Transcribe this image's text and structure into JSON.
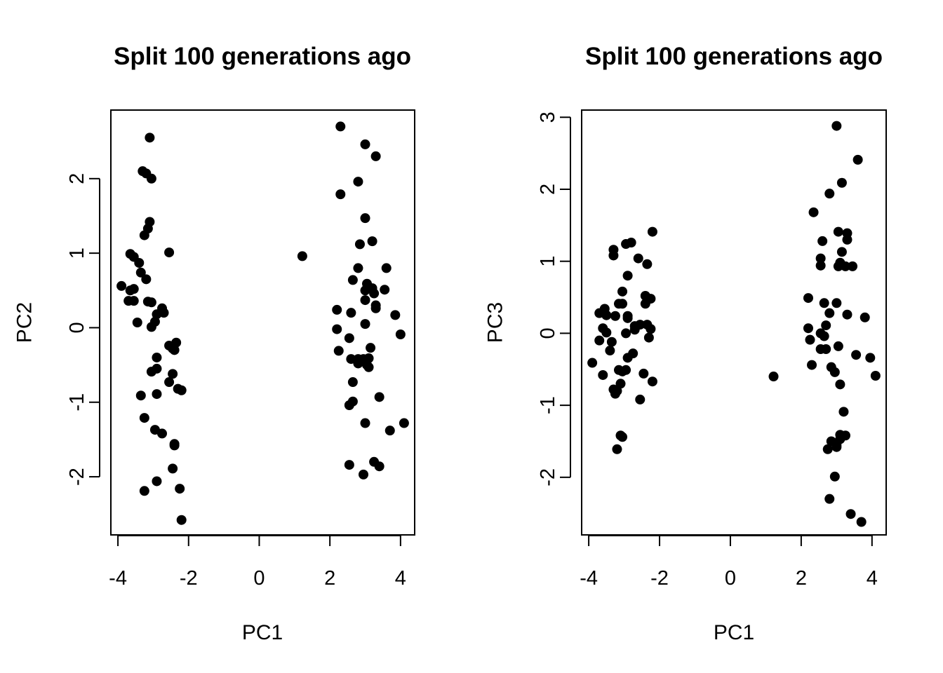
{
  "chart_data": [
    {
      "type": "scatter",
      "title": "Split 100 generations ago",
      "xlabel": "PC1",
      "ylabel": "PC2",
      "xlim": [
        -4.2,
        4.4
      ],
      "ylim": [
        -2.78,
        2.92
      ],
      "xticks": [
        -4,
        -2,
        0,
        2,
        4
      ],
      "yticks": [
        -2,
        -1,
        0,
        1,
        2
      ],
      "points": [
        [
          -3.1,
          2.55
        ],
        [
          -3.3,
          2.1
        ],
        [
          -3.2,
          2.07
        ],
        [
          -3.05,
          2.0
        ],
        [
          -3.1,
          1.42
        ],
        [
          -3.15,
          1.33
        ],
        [
          -3.25,
          1.24
        ],
        [
          -3.65,
          0.99
        ],
        [
          -3.55,
          0.95
        ],
        [
          -2.55,
          1.01
        ],
        [
          -3.4,
          0.87
        ],
        [
          -3.35,
          0.74
        ],
        [
          -3.2,
          0.65
        ],
        [
          -3.9,
          0.56
        ],
        [
          -3.55,
          0.52
        ],
        [
          -3.65,
          0.5
        ],
        [
          -3.7,
          0.36
        ],
        [
          -3.55,
          0.36
        ],
        [
          -3.15,
          0.35
        ],
        [
          -3.05,
          0.34
        ],
        [
          -2.75,
          0.26
        ],
        [
          -2.7,
          0.2
        ],
        [
          -2.9,
          0.18
        ],
        [
          -2.95,
          0.08
        ],
        [
          -3.45,
          0.07
        ],
        [
          -3.05,
          0.01
        ],
        [
          -2.55,
          -0.24
        ],
        [
          -2.35,
          -0.2
        ],
        [
          -2.45,
          -0.28
        ],
        [
          -2.4,
          -0.3
        ],
        [
          -2.9,
          -0.4
        ],
        [
          -3.05,
          -0.59
        ],
        [
          -2.9,
          -0.55
        ],
        [
          -2.45,
          -0.62
        ],
        [
          -2.55,
          -0.73
        ],
        [
          -2.3,
          -0.82
        ],
        [
          -2.2,
          -0.84
        ],
        [
          -3.35,
          -0.91
        ],
        [
          -2.9,
          -0.89
        ],
        [
          -3.25,
          -1.21
        ],
        [
          -2.95,
          -1.37
        ],
        [
          -2.75,
          -1.42
        ],
        [
          -2.4,
          -1.56
        ],
        [
          -2.4,
          -1.58
        ],
        [
          -2.45,
          -1.89
        ],
        [
          -2.9,
          -2.06
        ],
        [
          -3.25,
          -2.19
        ],
        [
          -2.25,
          -2.16
        ],
        [
          -2.2,
          -2.58
        ],
        [
          1.22,
          0.96
        ],
        [
          2.3,
          2.7
        ],
        [
          3.0,
          2.46
        ],
        [
          3.3,
          2.3
        ],
        [
          2.3,
          1.79
        ],
        [
          2.8,
          1.96
        ],
        [
          3.0,
          1.47
        ],
        [
          3.2,
          1.16
        ],
        [
          2.85,
          1.12
        ],
        [
          3.6,
          0.8
        ],
        [
          2.8,
          0.8
        ],
        [
          2.65,
          0.64
        ],
        [
          3.05,
          0.59
        ],
        [
          3.1,
          0.54
        ],
        [
          3.0,
          0.5
        ],
        [
          3.55,
          0.51
        ],
        [
          3.2,
          0.53
        ],
        [
          3.25,
          0.46
        ],
        [
          3.0,
          0.37
        ],
        [
          3.3,
          0.26
        ],
        [
          3.3,
          0.3
        ],
        [
          2.2,
          0.24
        ],
        [
          2.6,
          0.2
        ],
        [
          3.85,
          0.17
        ],
        [
          3.0,
          0.05
        ],
        [
          2.2,
          -0.02
        ],
        [
          4.0,
          -0.09
        ],
        [
          2.55,
          -0.14
        ],
        [
          3.15,
          -0.27
        ],
        [
          2.25,
          -0.31
        ],
        [
          2.6,
          -0.42
        ],
        [
          2.8,
          -0.42
        ],
        [
          2.95,
          -0.42
        ],
        [
          3.1,
          -0.41
        ],
        [
          2.8,
          -0.48
        ],
        [
          3.05,
          -0.5
        ],
        [
          3.1,
          -0.53
        ],
        [
          2.65,
          -0.73
        ],
        [
          3.4,
          -0.93
        ],
        [
          2.65,
          -0.99
        ],
        [
          2.55,
          -1.04
        ],
        [
          3.0,
          -1.28
        ],
        [
          4.1,
          -1.28
        ],
        [
          3.7,
          -1.38
        ],
        [
          2.55,
          -1.84
        ],
        [
          3.25,
          -1.8
        ],
        [
          3.4,
          -1.86
        ],
        [
          2.95,
          -1.97
        ]
      ]
    },
    {
      "type": "scatter",
      "title": "Split 100 generations ago",
      "xlabel": "PC1",
      "ylabel": "PC3",
      "xlim": [
        -4.2,
        4.4
      ],
      "ylim": [
        -2.8,
        3.1
      ],
      "xticks": [
        -4,
        -2,
        0,
        2,
        4
      ],
      "yticks": [
        -2,
        -1,
        0,
        1,
        2,
        3
      ],
      "points": [
        [
          -2.2,
          1.41
        ],
        [
          -3.3,
          1.16
        ],
        [
          -2.95,
          1.24
        ],
        [
          -2.8,
          1.26
        ],
        [
          -3.3,
          1.08
        ],
        [
          -2.6,
          1.04
        ],
        [
          -2.35,
          0.96
        ],
        [
          -2.9,
          0.8
        ],
        [
          -3.05,
          0.58
        ],
        [
          -2.4,
          0.52
        ],
        [
          -2.25,
          0.48
        ],
        [
          -3.15,
          0.41
        ],
        [
          -3.05,
          0.41
        ],
        [
          -2.4,
          0.41
        ],
        [
          -3.55,
          0.34
        ],
        [
          -3.7,
          0.28
        ],
        [
          -3.5,
          0.25
        ],
        [
          -3.25,
          0.24
        ],
        [
          -2.9,
          0.24
        ],
        [
          -2.9,
          0.21
        ],
        [
          -2.55,
          0.12
        ],
        [
          -2.35,
          0.12
        ],
        [
          -2.7,
          0.1
        ],
        [
          -3.6,
          0.07
        ],
        [
          -2.25,
          0.06
        ],
        [
          -2.7,
          0.05
        ],
        [
          -3.5,
          0.01
        ],
        [
          -2.95,
          0.0
        ],
        [
          -2.3,
          -0.06
        ],
        [
          -3.7,
          -0.1
        ],
        [
          -3.35,
          -0.12
        ],
        [
          -3.4,
          -0.24
        ],
        [
          -2.75,
          -0.28
        ],
        [
          -2.9,
          -0.34
        ],
        [
          -3.9,
          -0.41
        ],
        [
          -3.15,
          -0.51
        ],
        [
          -2.95,
          -0.51
        ],
        [
          -3.05,
          -0.53
        ],
        [
          -2.45,
          -0.56
        ],
        [
          -3.6,
          -0.58
        ],
        [
          -2.2,
          -0.67
        ],
        [
          -3.1,
          -0.7
        ],
        [
          -3.3,
          -0.78
        ],
        [
          -3.2,
          -0.8
        ],
        [
          -3.25,
          -0.84
        ],
        [
          -2.55,
          -0.92
        ],
        [
          -3.1,
          -1.42
        ],
        [
          -3.05,
          -1.44
        ],
        [
          -3.2,
          -1.61
        ],
        [
          1.22,
          -0.6
        ],
        [
          3.0,
          2.88
        ],
        [
          3.6,
          2.41
        ],
        [
          3.15,
          2.09
        ],
        [
          2.8,
          1.94
        ],
        [
          2.35,
          1.68
        ],
        [
          3.05,
          1.41
        ],
        [
          3.3,
          1.39
        ],
        [
          3.3,
          1.3
        ],
        [
          2.6,
          1.28
        ],
        [
          3.15,
          1.13
        ],
        [
          2.55,
          1.04
        ],
        [
          3.1,
          0.98
        ],
        [
          2.55,
          0.94
        ],
        [
          3.25,
          0.93
        ],
        [
          3.45,
          0.93
        ],
        [
          3.05,
          0.93
        ],
        [
          2.2,
          0.49
        ],
        [
          2.65,
          0.42
        ],
        [
          3.0,
          0.42
        ],
        [
          2.8,
          0.28
        ],
        [
          3.3,
          0.26
        ],
        [
          3.8,
          0.22
        ],
        [
          2.7,
          0.11
        ],
        [
          2.2,
          0.07
        ],
        [
          2.55,
          0.0
        ],
        [
          2.65,
          -0.04
        ],
        [
          2.25,
          -0.09
        ],
        [
          2.55,
          -0.22
        ],
        [
          2.7,
          -0.22
        ],
        [
          3.05,
          -0.18
        ],
        [
          3.55,
          -0.3
        ],
        [
          3.95,
          -0.34
        ],
        [
          2.3,
          -0.44
        ],
        [
          2.85,
          -0.47
        ],
        [
          2.95,
          -0.54
        ],
        [
          4.1,
          -0.59
        ],
        [
          3.1,
          -0.71
        ],
        [
          3.2,
          -1.09
        ],
        [
          3.1,
          -1.41
        ],
        [
          3.25,
          -1.42
        ],
        [
          3.1,
          -1.47
        ],
        [
          2.85,
          -1.5
        ],
        [
          3.0,
          -1.55
        ],
        [
          2.75,
          -1.61
        ],
        [
          3.0,
          -1.58
        ],
        [
          2.95,
          -1.99
        ],
        [
          2.8,
          -2.3
        ],
        [
          3.4,
          -2.51
        ],
        [
          3.7,
          -2.62
        ]
      ]
    }
  ]
}
